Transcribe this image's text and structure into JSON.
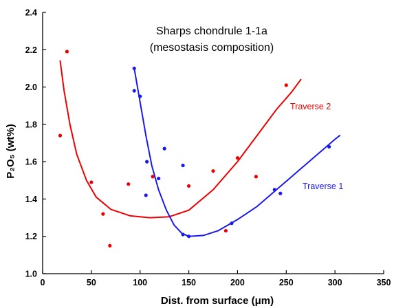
{
  "chart_data": {
    "type": "scatter",
    "title": "Sharps chondrule 1-1a",
    "subtitle": "(mesostasis composition)",
    "xlabel": "Dist. from surface (μm)",
    "ylabel": "P₂O₅ (wt%)",
    "xlim": [
      0,
      350
    ],
    "ylim": [
      1.0,
      2.4
    ],
    "xticks": [
      "0",
      "50",
      "100",
      "150",
      "200",
      "250",
      "300",
      "350"
    ],
    "yticks": [
      "1.0",
      "1.2",
      "1.4",
      "1.6",
      "1.8",
      "2.0",
      "2.2",
      "2.4"
    ],
    "grid": false,
    "series": [
      {
        "name": "Traverse 2",
        "color": "#ee0000",
        "points": [
          [
            18,
            1.74
          ],
          [
            25,
            2.19
          ],
          [
            50,
            1.49
          ],
          [
            62,
            1.32
          ],
          [
            69,
            1.15
          ],
          [
            88,
            1.48
          ],
          [
            113,
            1.52
          ],
          [
            150,
            1.47
          ],
          [
            175,
            1.55
          ],
          [
            188,
            1.23
          ],
          [
            200,
            1.62
          ],
          [
            219,
            1.52
          ],
          [
            250,
            2.01
          ]
        ],
        "fit_curve": [
          [
            18,
            2.14
          ],
          [
            22,
            1.98
          ],
          [
            28,
            1.8
          ],
          [
            35,
            1.64
          ],
          [
            45,
            1.5
          ],
          [
            55,
            1.41
          ],
          [
            70,
            1.345
          ],
          [
            90,
            1.31
          ],
          [
            110,
            1.3
          ],
          [
            130,
            1.305
          ],
          [
            150,
            1.34
          ],
          [
            175,
            1.45
          ],
          [
            200,
            1.6
          ],
          [
            220,
            1.74
          ],
          [
            240,
            1.88
          ],
          [
            255,
            1.97
          ],
          [
            265,
            2.04
          ]
        ]
      },
      {
        "name": "Traverse 1",
        "color": "#1a1aee",
        "points": [
          [
            94,
            2.1
          ],
          [
            94,
            1.98
          ],
          [
            100,
            1.95
          ],
          [
            106,
            1.42
          ],
          [
            107,
            1.6
          ],
          [
            119,
            1.51
          ],
          [
            125,
            1.67
          ],
          [
            144,
            1.58
          ],
          [
            144,
            1.21
          ],
          [
            150,
            1.2
          ],
          [
            194,
            1.27
          ],
          [
            238,
            1.45
          ],
          [
            244,
            1.43
          ],
          [
            294,
            1.68
          ]
        ],
        "fit_curve": [
          [
            94,
            2.1
          ],
          [
            100,
            1.92
          ],
          [
            106,
            1.74
          ],
          [
            112,
            1.58
          ],
          [
            119,
            1.45
          ],
          [
            127,
            1.34
          ],
          [
            135,
            1.26
          ],
          [
            143,
            1.215
          ],
          [
            150,
            1.2
          ],
          [
            165,
            1.205
          ],
          [
            180,
            1.23
          ],
          [
            200,
            1.29
          ],
          [
            220,
            1.36
          ],
          [
            240,
            1.45
          ],
          [
            260,
            1.54
          ],
          [
            280,
            1.63
          ],
          [
            300,
            1.72
          ],
          [
            305,
            1.74
          ]
        ]
      }
    ]
  }
}
